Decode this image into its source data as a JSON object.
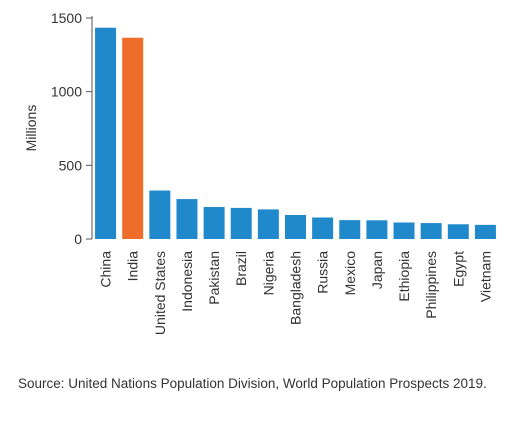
{
  "colors": {
    "bar": "#2089cb",
    "highlight": "#ee6d2b",
    "axis": "#555555",
    "text": "#333333"
  },
  "chart_data": {
    "type": "bar",
    "title": "",
    "xlabel": "",
    "ylabel": "Millions",
    "ylim": [
      0,
      1500
    ],
    "yticks": [
      0,
      500,
      1000,
      1500
    ],
    "grid": false,
    "legend": "none",
    "categories": [
      "China",
      "India",
      "United States",
      "Indonesia",
      "Pakistan",
      "Brazil",
      "Nigeria",
      "Bangladesh",
      "Russia",
      "Mexico",
      "Japan",
      "Ethiopia",
      "Philippines",
      "Egypt",
      "Vietnam"
    ],
    "values": [
      1434,
      1366,
      329,
      271,
      217,
      211,
      201,
      163,
      146,
      128,
      127,
      112,
      108,
      100,
      96
    ],
    "highlighted_category": "India"
  },
  "source": "Source: United Nations Population Division, World Population Prospects 2019."
}
